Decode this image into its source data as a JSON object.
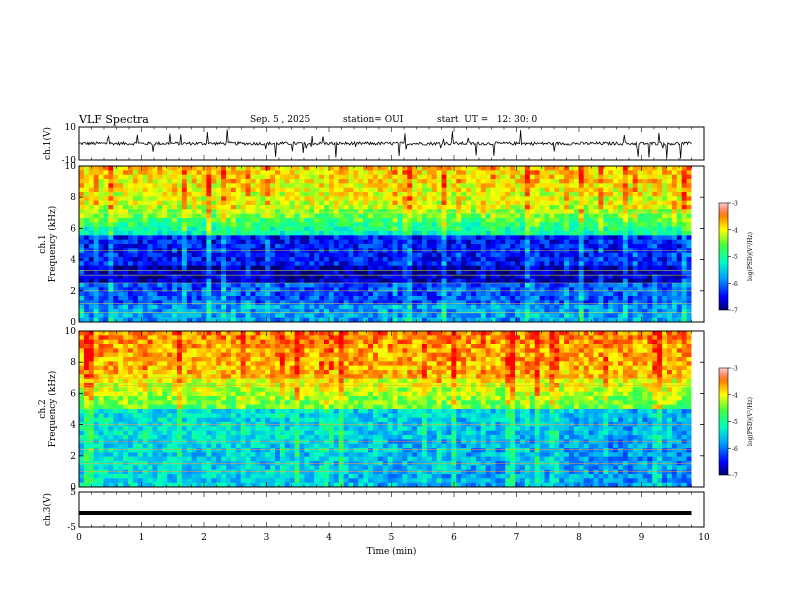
{
  "header": {
    "title": "VLF Spectra",
    "date": "Sep. 5 , 2025",
    "station": "station= OUI",
    "start": "start  UT =   12: 30: 0"
  },
  "chart_data": [
    {
      "type": "line",
      "panel": "ch1-waveform",
      "ylabel": "ch.1(V)",
      "ylim": [
        -10,
        10
      ],
      "yticks": [
        "10",
        "-10"
      ],
      "xlim": [
        0,
        10
      ],
      "baseline": 0,
      "noise": "wideband noise with impulsive sferic spikes"
    },
    {
      "type": "heatmap",
      "panel": "ch1-spectrogram",
      "ylabel": "ch.1\nFrequency (kHz)",
      "xlim": [
        0,
        10
      ],
      "ylim": [
        0,
        10
      ],
      "yticks": [
        "0",
        "2",
        "4",
        "6",
        "8",
        "10"
      ],
      "data_end_min": 9.8,
      "colorbar": {
        "label": "log(PSD)(V²/Hz)",
        "range": [
          -7,
          -3
        ],
        "ticks": [
          "-3",
          "-4",
          "-5",
          "-6",
          "-7"
        ]
      }
    },
    {
      "type": "heatmap",
      "panel": "ch2-spectrogram",
      "ylabel": "ch.2\nFrequency (kHz)",
      "xlim": [
        0,
        10
      ],
      "ylim": [
        0,
        10
      ],
      "yticks": [
        "0",
        "2",
        "4",
        "6",
        "8",
        "10"
      ],
      "data_end_min": 9.8,
      "colorbar": {
        "label": "log(PSD)(V²/Hz)",
        "range": [
          -7,
          -3
        ],
        "ticks": [
          "-3",
          "-4",
          "-5",
          "-6",
          "-7"
        ]
      }
    },
    {
      "type": "line",
      "panel": "ch3-waveform",
      "ylabel": "ch.3(V)",
      "ylim": [
        -5,
        5
      ],
      "yticks": [
        "5",
        "-5"
      ],
      "xlim": [
        0,
        10
      ],
      "x": [
        0,
        9.8
      ],
      "y": [
        -1,
        -1
      ]
    }
  ],
  "xaxis": {
    "label": "Time (min)",
    "ticks": [
      "0",
      "1",
      "2",
      "3",
      "4",
      "5",
      "6",
      "7",
      "8",
      "9",
      "10"
    ]
  }
}
